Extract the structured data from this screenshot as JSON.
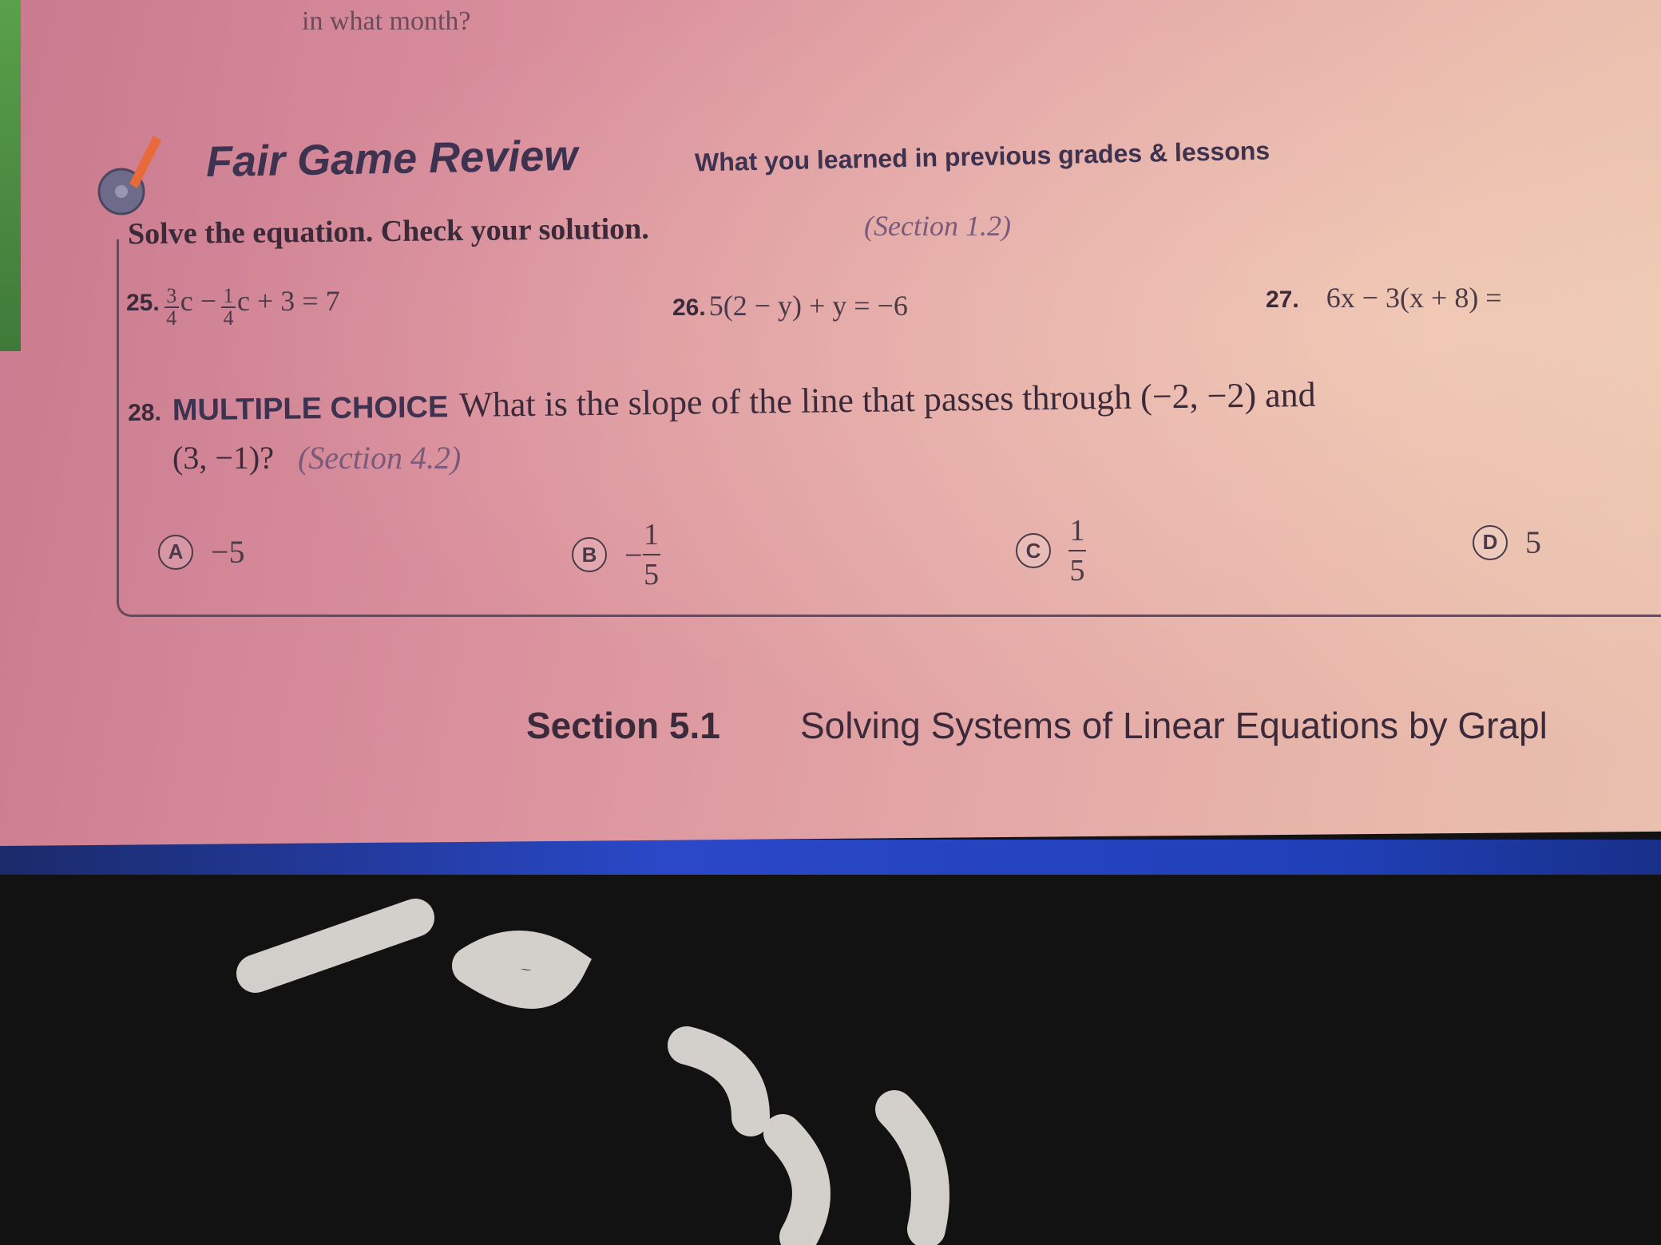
{
  "top_text": "in what month?",
  "header": {
    "title": "Fair Game Review",
    "subtitle": "What you learned in previous grades & lessons",
    "icon": "pencil-cd-icon"
  },
  "instruction": {
    "text": "Solve the equation. Check your solution.",
    "section": "(Section 1.2)"
  },
  "problems": [
    {
      "number": "25.",
      "frac1_num": "3",
      "frac1_den": "4",
      "part1": "c −",
      "frac2_num": "1",
      "frac2_den": "4",
      "part2": "c + 3 = 7"
    },
    {
      "number": "26.",
      "expression": "5(2 − y) + y = −6"
    },
    {
      "number": "27.",
      "expression": "6x − 3(x + 8) ="
    }
  ],
  "question28": {
    "number": "28.",
    "type": "MULTIPLE CHOICE",
    "line1": "What is the slope of the line that passes through (−2, −2) and",
    "line2": "(3, −1)?",
    "section": "(Section 4.2)",
    "choices": [
      {
        "letter": "A",
        "value": "−5"
      },
      {
        "letter": "B",
        "sign": "−",
        "num": "1",
        "den": "5"
      },
      {
        "letter": "C",
        "num": "1",
        "den": "5"
      },
      {
        "letter": "D",
        "value": "5"
      }
    ]
  },
  "footer": {
    "section": "Section 5.1",
    "title": "Solving Systems of Linear Equations by Grapl"
  },
  "colors": {
    "page": "#dc9aa0",
    "text": "#3b2a3a",
    "fabric": "#121212",
    "band": "#2a48c8"
  }
}
